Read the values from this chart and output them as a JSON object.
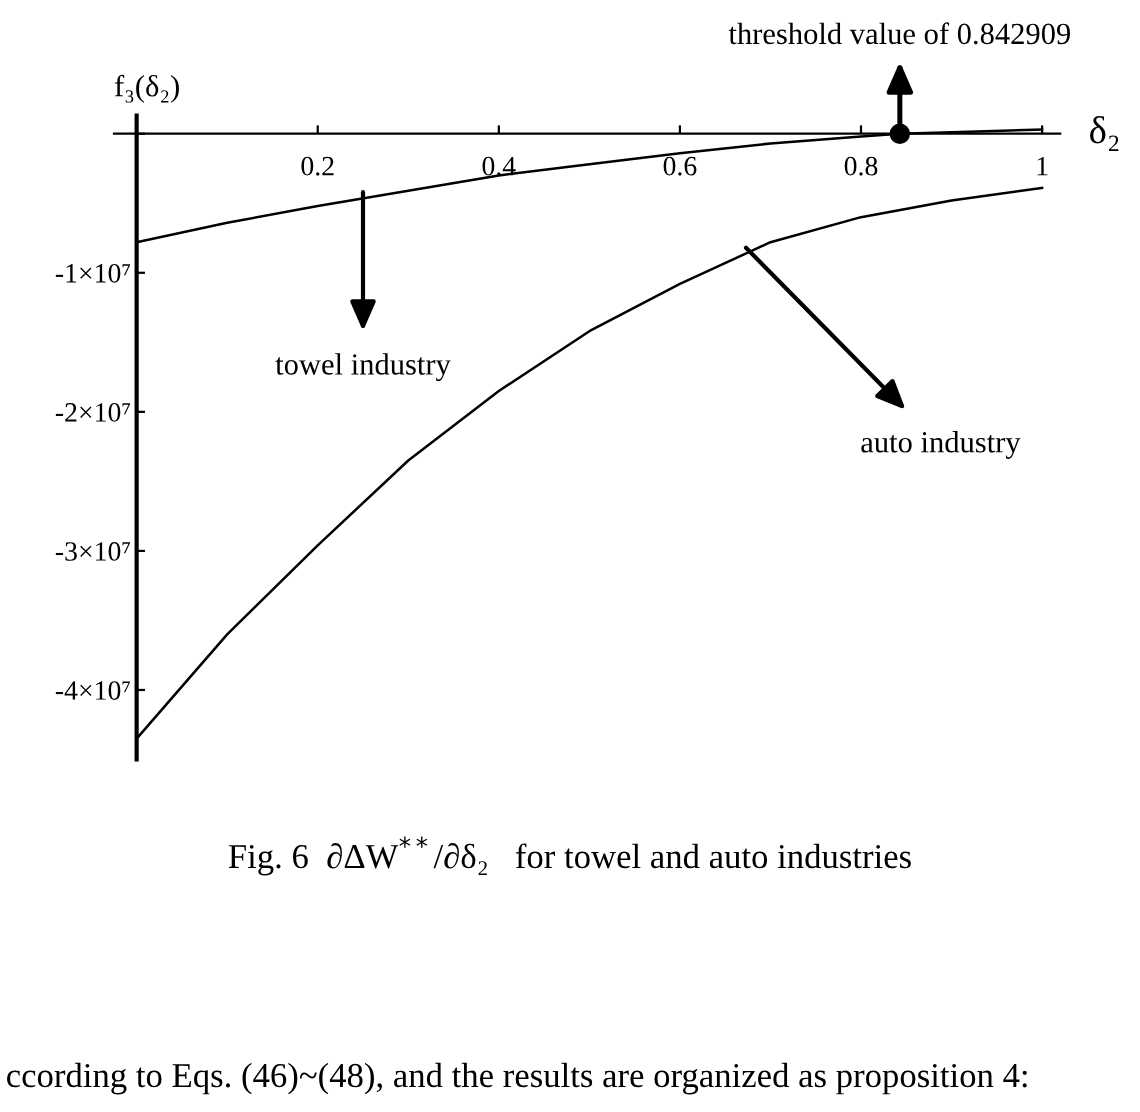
{
  "chart_data": {
    "type": "line",
    "xlabel": "δ₂",
    "ylabel": "f₃(δ₂)",
    "xlim": [
      -0.025,
      1.02
    ],
    "ylim": [
      -45000000,
      1300000
    ],
    "xticks": [
      {
        "value": 0,
        "label": null
      },
      0.2,
      0.4,
      0.6,
      0.8,
      1
    ],
    "yticks": [
      {
        "value": -40000000,
        "label": "-4×10⁷"
      },
      {
        "value": -30000000,
        "label": "-3×10⁷"
      },
      {
        "value": -20000000,
        "label": "-2×10⁷"
      },
      {
        "value": -10000000,
        "label": "-1×10⁷"
      },
      {
        "value": 0,
        "label": null
      }
    ],
    "grid": false,
    "legend": false,
    "series": [
      {
        "color": "#000000",
        "x": [
          0,
          0.1,
          0.2,
          0.3,
          0.4,
          0.5,
          0.6,
          0.7,
          0.8,
          0.842909,
          0.9,
          1
        ],
        "values": [
          -7800000,
          -6400000,
          -5200000,
          -4100000,
          -3000000,
          -2200000,
          -1400000,
          -700000,
          -200000,
          0,
          100000,
          300000
        ]
      },
      {
        "color": "#000000",
        "x": [
          0,
          0.1,
          0.2,
          0.3,
          0.4,
          0.5,
          0.6,
          0.7,
          0.8,
          0.9,
          1
        ],
        "values": [
          -43500000,
          -36000000,
          -29600000,
          -23500000,
          -18500000,
          -14200000,
          -10800000,
          -7800000,
          -6000000,
          -4800000,
          -3900000
        ]
      },
      {
        "type": "scatter",
        "color": "#000000",
        "marker": "circle",
        "x": [
          0.842909
        ],
        "values": [
          0
        ]
      }
    ],
    "annotations": [
      {
        "text": "threshold value of 0.842909",
        "x": 0.842909,
        "y": 0
      },
      {
        "text": "towel industry",
        "x": 0.25,
        "y": -4200000
      },
      {
        "text": "auto industry",
        "x": 0.673,
        "y": -8200000
      },
      "Fig. 6  ∂ΔW$^{**}$/∂δ₂   for towel and auto industries",
      "ccording to Eqs. (46)~(48), and the results are organized as proposition 4:"
    ]
  }
}
